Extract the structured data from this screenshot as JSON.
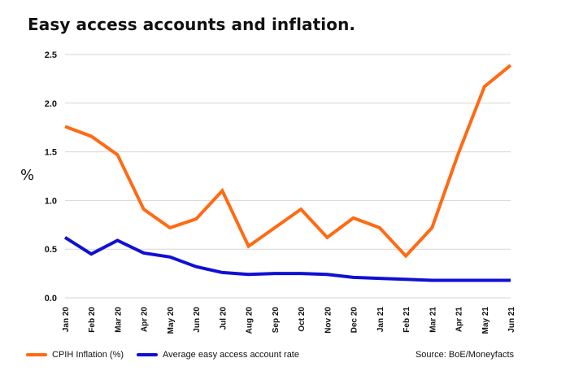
{
  "title": "Easy access accounts and inflation.",
  "source": "Source: BoE/Moneyfacts",
  "colors": {
    "cpih": "#ff6a13",
    "rate": "#1010d4",
    "grid": "#d6d6d6",
    "text": "#111111"
  },
  "chart_data": {
    "type": "line",
    "title": "Easy access accounts and inflation.",
    "xlabel": "",
    "ylabel": "%",
    "ylim": [
      0,
      2.5
    ],
    "yticks": [
      "0.0",
      "0.5",
      "1.0",
      "1.5",
      "2.0",
      "2.5"
    ],
    "grid": true,
    "legend": "bottom-left",
    "categories": [
      "Jan 20",
      "Feb 20",
      "Mar 20",
      "Apr 20",
      "May 20",
      "Jun 20",
      "Jul 20",
      "Aug 20",
      "Sep 20",
      "Oct 20",
      "Nov 20",
      "Dec 20",
      "Jan 21",
      "Feb 21",
      "Mar 21",
      "Apr 21",
      "May 21",
      "Jun 21"
    ],
    "series": [
      {
        "name": "CPIH Inflation (%)",
        "color": "#ff6a13",
        "values": [
          1.76,
          1.66,
          1.47,
          0.91,
          0.72,
          0.81,
          1.1,
          0.53,
          0.72,
          0.91,
          0.62,
          0.82,
          0.72,
          0.43,
          0.72,
          1.48,
          2.17,
          2.39
        ]
      },
      {
        "name": "Average easy access account rate",
        "color": "#1010d4",
        "values": [
          0.62,
          0.45,
          0.59,
          0.46,
          0.42,
          0.32,
          0.26,
          0.24,
          0.25,
          0.25,
          0.24,
          0.21,
          0.2,
          0.19,
          0.18,
          0.18,
          0.18,
          0.18
        ]
      }
    ]
  }
}
